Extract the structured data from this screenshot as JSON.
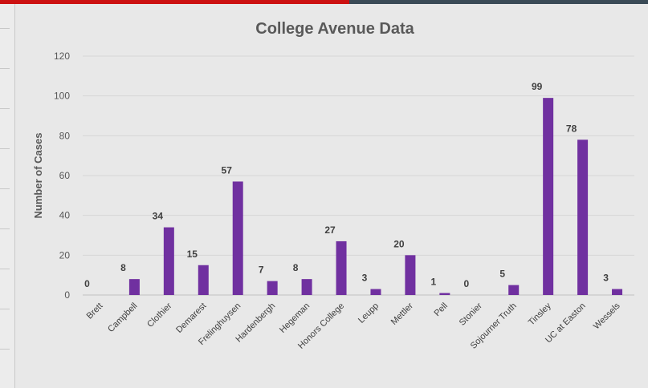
{
  "chart_data": {
    "type": "bar",
    "title": "College Avenue Data",
    "xlabel": "",
    "ylabel": "Number of Cases",
    "ylim": [
      0,
      120
    ],
    "yticks": [
      0,
      20,
      40,
      60,
      80,
      100,
      120
    ],
    "grid": true,
    "legend": "none",
    "bar_color": "#7030a0",
    "categories": [
      "Brett",
      "Campbell",
      "Clothier",
      "Demarest",
      "Frelinghuysen",
      "Hardenbergh",
      "Hegeman",
      "Honors College",
      "Leupp",
      "Mettler",
      "Pell",
      "Stonier",
      "Sojourner Truth",
      "Tinsley",
      "UC at Easton",
      "Wessels"
    ],
    "values": [
      0,
      8,
      34,
      15,
      57,
      7,
      8,
      27,
      3,
      20,
      1,
      0,
      5,
      99,
      78,
      3
    ]
  }
}
